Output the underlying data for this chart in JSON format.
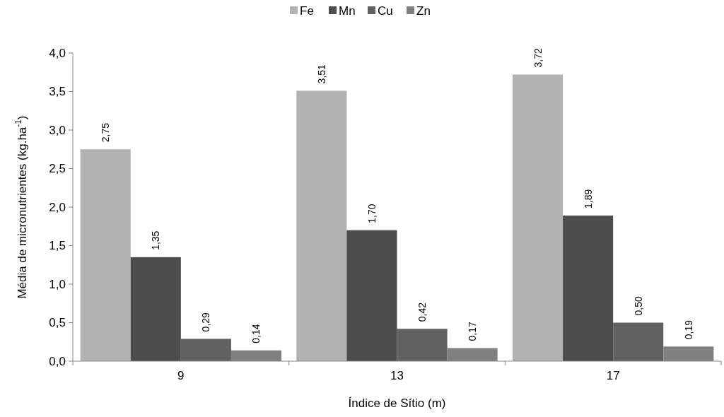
{
  "chart_data": {
    "type": "bar",
    "xlabel": "Índice de Sítio (m)",
    "ylabel": "Média de micronutrientes (kg.ha$^{-1}$)",
    "categories": [
      "9",
      "13",
      "17"
    ],
    "series": [
      {
        "name": "Fe",
        "color": "#b2b2b2",
        "values": [
          2.75,
          3.51,
          3.72
        ],
        "value_labels": [
          "2,75",
          "3,51",
          "3,72"
        ]
      },
      {
        "name": "Mn",
        "color": "#4d4d4d",
        "values": [
          1.35,
          1.7,
          1.89
        ],
        "value_labels": [
          "1,35",
          "1,70",
          "1,89"
        ]
      },
      {
        "name": "Cu",
        "color": "#616161",
        "values": [
          0.29,
          0.42,
          0.5
        ],
        "value_labels": [
          "0,29",
          "0,42",
          "0,50"
        ]
      },
      {
        "name": "Zn",
        "color": "#808080",
        "values": [
          0.14,
          0.17,
          0.19
        ],
        "value_labels": [
          "0,14",
          "0,17",
          "0,19"
        ]
      }
    ],
    "ylim": [
      0,
      4
    ],
    "yticks": [
      {
        "value": 0,
        "label": "0,0"
      },
      {
        "value": 0.5,
        "label": "0,5"
      },
      {
        "value": 1,
        "label": "1,0"
      },
      {
        "value": 1.5,
        "label": "1,5"
      },
      {
        "value": 2,
        "label": "2,0"
      },
      {
        "value": 2.5,
        "label": "2,5"
      },
      {
        "value": 3,
        "label": "3,0"
      },
      {
        "value": 3.5,
        "label": "3,5"
      },
      {
        "value": 4,
        "label": "4,0"
      }
    ],
    "legend": "top",
    "grid": false
  }
}
